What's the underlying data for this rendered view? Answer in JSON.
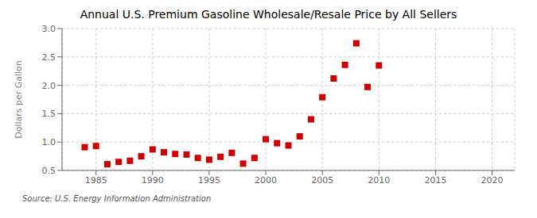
{
  "chart_data": {
    "type": "scatter",
    "title": "Annual U.S. Premium Gasoline Wholesale/Resale Price by All Sellers",
    "ylabel": "Dollars per Gallon",
    "annotations": [
      "Source: U.S. Energy Information Administration"
    ],
    "x": [
      1984,
      1985,
      1986,
      1987,
      1988,
      1989,
      1990,
      1991,
      1992,
      1993,
      1994,
      1995,
      1996,
      1997,
      1998,
      1999,
      2000,
      2001,
      2002,
      2003,
      2004,
      2005,
      2006,
      2007,
      2008,
      2009,
      2010
    ],
    "values": [
      0.91,
      0.93,
      0.61,
      0.65,
      0.67,
      0.75,
      0.87,
      0.82,
      0.79,
      0.78,
      0.72,
      0.69,
      0.74,
      0.81,
      0.62,
      0.72,
      1.05,
      0.98,
      0.94,
      1.1,
      1.4,
      1.79,
      2.12,
      2.36,
      2.74,
      1.97,
      2.35
    ],
    "color": "#cc0000",
    "marker": "square",
    "xlim": [
      1982,
      2022
    ],
    "xticks": [
      1985,
      1990,
      1995,
      2000,
      2005,
      2010,
      2015,
      2020
    ],
    "ylim": [
      0.5,
      3.0
    ],
    "yticks": [
      0.5,
      {
        "value": 1.0,
        "label": "1.0"
      },
      1.5,
      {
        "value": 2.0,
        "label": "2.0"
      },
      2.5,
      {
        "value": 3.0,
        "label": "3.0"
      }
    ],
    "grid": true
  }
}
